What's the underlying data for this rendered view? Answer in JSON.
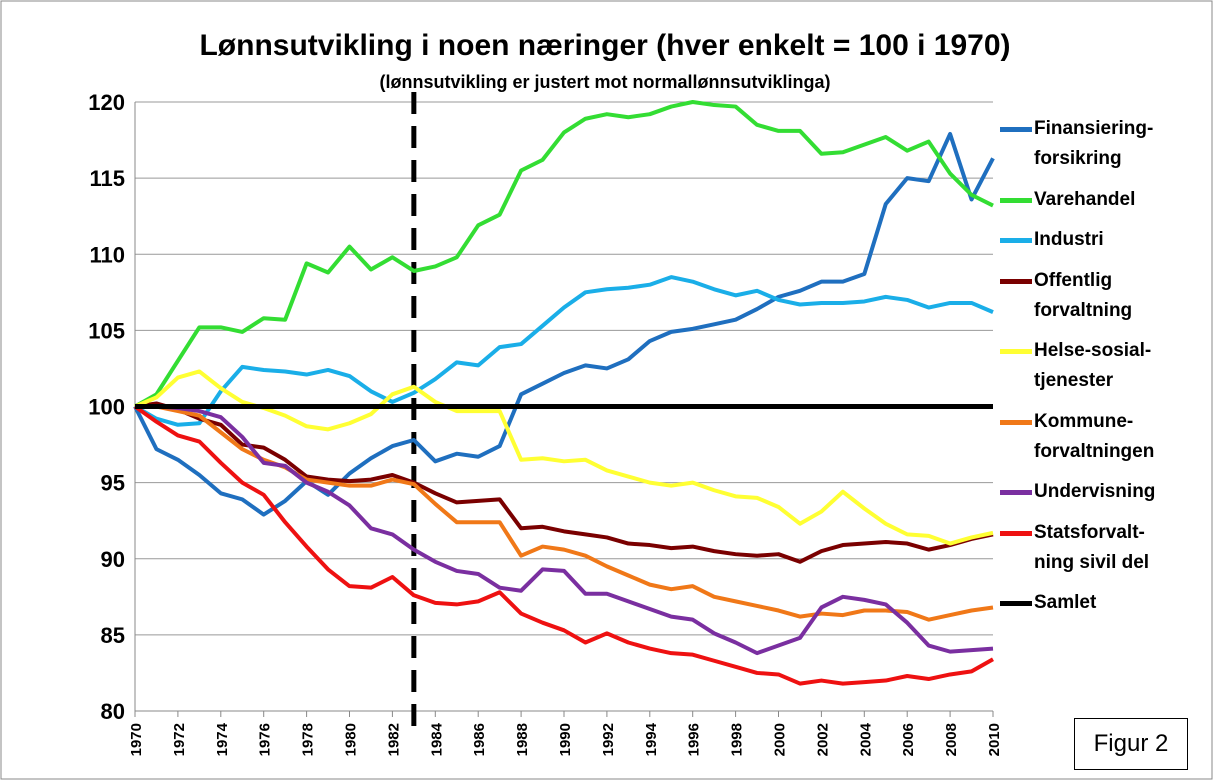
{
  "chart_data": {
    "type": "line",
    "title": "Lønnsutvikling i noen næringer (hver enkelt = 100 i 1970)",
    "subtitle": "(lønnsutvikling er justert mot normallønnsutviklinga)",
    "annotation": "Figur 2",
    "x": [
      1970,
      1971,
      1972,
      1973,
      1974,
      1975,
      1976,
      1977,
      1978,
      1979,
      1980,
      1981,
      1982,
      1983,
      1984,
      1985,
      1986,
      1987,
      1988,
      1989,
      1990,
      1991,
      1992,
      1993,
      1994,
      1995,
      1996,
      1997,
      1998,
      1999,
      2000,
      2001,
      2002,
      2003,
      2004,
      2005,
      2006,
      2007,
      2008,
      2009,
      2010
    ],
    "xlim": [
      1970,
      2010
    ],
    "xticks": [
      1970,
      1972,
      1974,
      1976,
      1978,
      1980,
      1982,
      1984,
      1986,
      1988,
      1990,
      1992,
      1994,
      1996,
      1998,
      2000,
      2002,
      2004,
      2006,
      2008,
      2010
    ],
    "ylim": [
      80,
      120
    ],
    "yticks": [
      80,
      85,
      90,
      95,
      100,
      105,
      110,
      115,
      120
    ],
    "grid": true,
    "vertical_line": 1983,
    "series": [
      {
        "name": "Finansiering-\nforsikring",
        "color": "#1f6fbf",
        "values": [
          100,
          97.2,
          96.5,
          95.5,
          94.3,
          93.9,
          92.9,
          93.8,
          95.1,
          94.2,
          95.6,
          96.6,
          97.4,
          97.8,
          96.4,
          96.9,
          96.7,
          97.4,
          100.8,
          101.5,
          102.2,
          102.7,
          102.5,
          103.1,
          104.3,
          104.9,
          105.1,
          105.4,
          105.7,
          106.4,
          107.2,
          107.6,
          108.2,
          108.2,
          108.7,
          113.3,
          115,
          114.8,
          117.9,
          113.6,
          116.3
        ]
      },
      {
        "name": "Varehandel",
        "color": "#33dd33",
        "values": [
          100,
          100.8,
          103,
          105.2,
          105.2,
          104.9,
          105.8,
          105.7,
          109.4,
          108.8,
          110.5,
          109,
          109.8,
          108.9,
          109.2,
          109.8,
          111.9,
          112.6,
          115.5,
          116.2,
          118,
          118.9,
          119.2,
          119,
          119.2,
          119.7,
          120,
          119.8,
          119.7,
          118.5,
          118.1,
          118.1,
          116.6,
          116.7,
          117.2,
          117.7,
          116.8,
          117.4,
          115.3,
          113.9,
          113.2
        ]
      },
      {
        "name": "Industri",
        "color": "#1aaee8",
        "values": [
          100,
          99.2,
          98.8,
          98.9,
          101,
          102.6,
          102.4,
          102.3,
          102.1,
          102.4,
          102,
          101,
          100.3,
          100.9,
          101.8,
          102.9,
          102.7,
          103.9,
          104.1,
          105.3,
          106.5,
          107.5,
          107.7,
          107.8,
          108,
          108.5,
          108.2,
          107.7,
          107.3,
          107.6,
          107,
          106.7,
          106.8,
          106.8,
          106.9,
          107.2,
          107,
          106.5,
          106.8,
          106.8,
          106.2
        ]
      },
      {
        "name": "Offentlig\nforvaltning",
        "color": "#7a0000",
        "values": [
          100,
          100.2,
          99.8,
          99.2,
          98.8,
          97.5,
          97.3,
          96.5,
          95.4,
          95.2,
          95.1,
          95.2,
          95.5,
          95,
          94.3,
          93.7,
          93.8,
          93.9,
          92,
          92.1,
          91.8,
          91.6,
          91.4,
          91,
          90.9,
          90.7,
          90.8,
          90.5,
          90.3,
          90.2,
          90.3,
          89.8,
          90.5,
          90.9,
          91,
          91.1,
          91,
          90.6,
          90.9,
          91.3,
          91.6
        ]
      },
      {
        "name": "Helse-sosial-\ntjenester",
        "color": "#ffff33",
        "values": [
          100,
          100.6,
          101.9,
          102.3,
          101.2,
          100.3,
          99.9,
          99.4,
          98.7,
          98.5,
          98.9,
          99.5,
          100.8,
          101.3,
          100.3,
          99.7,
          99.7,
          99.7,
          96.5,
          96.6,
          96.4,
          96.5,
          95.8,
          95.4,
          95,
          94.8,
          95,
          94.5,
          94.1,
          94,
          93.4,
          92.3,
          93.1,
          94.4,
          93.3,
          92.3,
          91.6,
          91.5,
          91,
          91.4,
          91.7
        ]
      },
      {
        "name": "Kommune-\nforvaltningen",
        "color": "#f07818",
        "values": [
          100,
          100,
          99.7,
          99.4,
          98.3,
          97.2,
          96.5,
          96,
          95.2,
          95,
          94.8,
          94.8,
          95.2,
          94.9,
          93.6,
          92.4,
          92.4,
          92.4,
          90.2,
          90.8,
          90.6,
          90.2,
          89.5,
          88.9,
          88.3,
          88,
          88.2,
          87.5,
          87.2,
          86.9,
          86.6,
          86.2,
          86.4,
          86.3,
          86.6,
          86.6,
          86.5,
          86,
          86.3,
          86.6,
          86.8
        ]
      },
      {
        "name": "Undervisning",
        "color": "#7a2fa0",
        "values": [
          100,
          100,
          99.9,
          99.7,
          99.3,
          98,
          96.3,
          96.1,
          95,
          94.4,
          93.5,
          92,
          91.6,
          90.6,
          89.8,
          89.2,
          89,
          88.1,
          87.9,
          89.3,
          89.2,
          87.7,
          87.7,
          87.2,
          86.7,
          86.2,
          86,
          85.1,
          84.5,
          83.8,
          84.3,
          84.8,
          86.8,
          87.5,
          87.3,
          87,
          85.8,
          84.3,
          83.9,
          84,
          84.1
        ]
      },
      {
        "name": "Statsforvalt-\nning sivil del",
        "color": "#ee1111",
        "values": [
          100,
          99,
          98.1,
          97.7,
          96.3,
          95,
          94.2,
          92.4,
          90.8,
          89.3,
          88.2,
          88.1,
          88.8,
          87.6,
          87.1,
          87,
          87.2,
          87.8,
          86.4,
          85.8,
          85.3,
          84.5,
          85.1,
          84.5,
          84.1,
          83.8,
          83.7,
          83.3,
          82.9,
          82.5,
          82.4,
          81.8,
          82,
          81.8,
          81.9,
          82,
          82.3,
          82.1,
          82.4,
          82.6,
          83.4
        ]
      },
      {
        "name": "Samlet",
        "color": "#000000",
        "values": [
          100,
          100,
          100,
          100,
          100,
          100,
          100,
          100,
          100,
          100,
          100,
          100,
          100,
          100,
          100,
          100,
          100,
          100,
          100,
          100,
          100,
          100,
          100,
          100,
          100,
          100,
          100,
          100,
          100,
          100,
          100,
          100,
          100,
          100,
          100,
          100,
          100,
          100,
          100,
          100,
          100
        ]
      }
    ]
  }
}
